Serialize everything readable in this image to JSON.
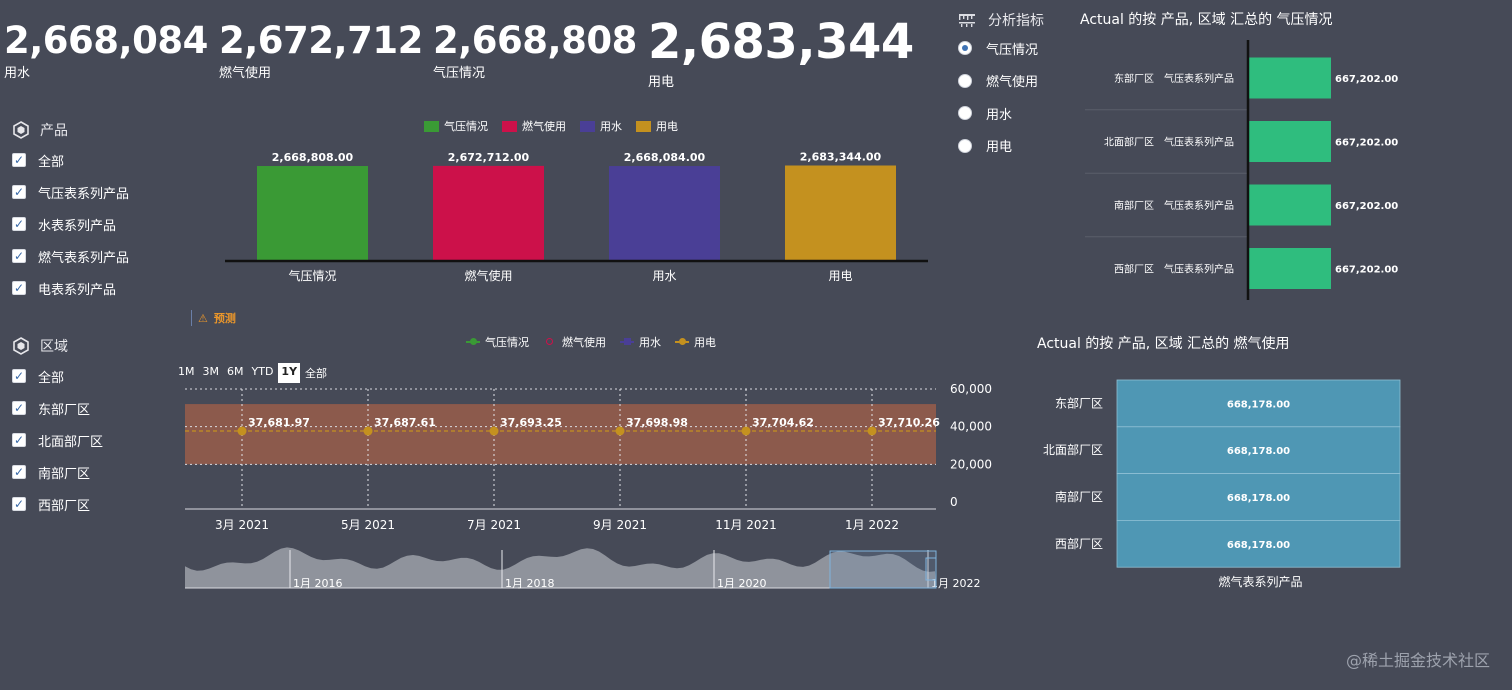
{
  "kpis": [
    {
      "value": "2,668,084",
      "label": "用水"
    },
    {
      "value": "2,672,712",
      "label": "燃气使用"
    },
    {
      "value": "2,668,808",
      "label": "气压情况"
    },
    {
      "value": "2,683,344",
      "label": "用电"
    }
  ],
  "product_filter": {
    "title": "产品",
    "items": [
      "全部",
      "气压表系列产品",
      "水表系列产品",
      "燃气表系列产品",
      "电表系列产品"
    ]
  },
  "region_filter": {
    "title": "区域",
    "items": [
      "全部",
      "东部厂区",
      "北面部厂区",
      "南部厂区",
      "西部厂区"
    ]
  },
  "metric_selector": {
    "title": "分析指标",
    "options": [
      "气压情况",
      "燃气使用",
      "用水",
      "用电"
    ],
    "selected": "气压情况"
  },
  "forecast_label": "预测",
  "range_buttons": [
    "1M",
    "3M",
    "6M",
    "YTD",
    "1Y",
    "全部"
  ],
  "range_active": "1Y",
  "colors": {
    "green": "#3a9a35",
    "crimson": "#cc114a",
    "purple": "#4a3f96",
    "gold": "#c4911f",
    "teal_green": "#2fbd7e",
    "steel_blue": "#4f97b4",
    "band": "#8c5a4c"
  },
  "watermark": "@稀土掘金技术社区",
  "chart_data": [
    {
      "type": "bar",
      "title": "",
      "legend": [
        "气压情况",
        "燃气使用",
        "用水",
        "用电"
      ],
      "categories": [
        "气压情况",
        "燃气使用",
        "用水",
        "用电"
      ],
      "values": [
        2668808.0,
        2672712.0,
        2668084.0,
        2683344.0
      ],
      "value_labels": [
        "2,668,808.00",
        "2,672,712.00",
        "2,668,084.00",
        "2,683,344.00"
      ],
      "colors": [
        "#3a9a35",
        "#cc114a",
        "#4a3f96",
        "#c4911f"
      ]
    },
    {
      "type": "line",
      "title": "",
      "legend": [
        "气压情况",
        "燃气使用",
        "用水",
        "用电"
      ],
      "x": [
        "2021-03",
        "2021-05",
        "2021-07",
        "2021-09",
        "2021-11",
        "2022-01"
      ],
      "x_tick_labels": [
        "3月 2021",
        "5月 2021",
        "7月 2021",
        "9月 2021",
        "11月 2021",
        "1月 2022"
      ],
      "series": [
        {
          "name": "用电",
          "values": [
            37681.97,
            37687.61,
            37693.25,
            37698.98,
            37704.62,
            37710.26
          ],
          "value_labels": [
            "37,681.97",
            "37,687.61",
            "37,693.25",
            "37,698.98",
            "37,704.62",
            "37,710.26"
          ]
        }
      ],
      "band": [
        20000,
        52000
      ],
      "ylim": [
        0,
        60000
      ],
      "y_ticks": [
        "0",
        "20,000",
        "40,000",
        "60,000"
      ],
      "navigator_labels": [
        "1月 2016",
        "1月 2018",
        "1月 2020",
        "1月 2022"
      ]
    },
    {
      "type": "bar",
      "orientation": "horizontal",
      "title": "Actual 的按 产品, 区域 汇总的 气压情况",
      "categories": [
        "东部厂区",
        "北面部厂区",
        "南部厂区",
        "西部厂区"
      ],
      "sub_category": "气压表系列产品",
      "values": [
        667202.0,
        667202.0,
        667202.0,
        667202.0
      ],
      "value_labels": [
        "667,202.00",
        "667,202.00",
        "667,202.00",
        "667,202.00"
      ]
    },
    {
      "type": "heatmap",
      "title": "Actual 的按 产品, 区域 汇总的 燃气使用",
      "rows": [
        "东部厂区",
        "北面部厂区",
        "南部厂区",
        "西部厂区"
      ],
      "columns": [
        "燃气表系列产品"
      ],
      "values": [
        668178.0,
        668178.0,
        668178.0,
        668178.0
      ],
      "value_labels": [
        "668,178.00",
        "668,178.00",
        "668,178.00",
        "668,178.00"
      ]
    }
  ]
}
